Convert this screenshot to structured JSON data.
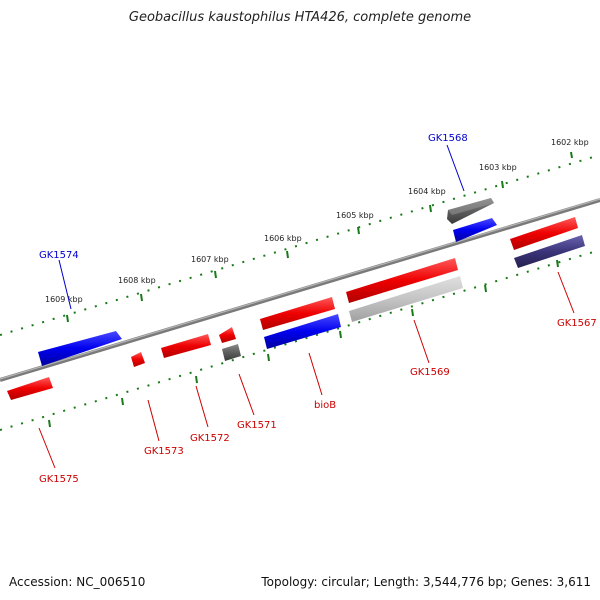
{
  "title": "Geobacillus kaustophilus HTA426, complete genome",
  "footer": {
    "accession": "Accession: NC_006510",
    "topology": "Topology: circular; Length: 3,544,776 bp; Genes: 3,611"
  },
  "ruler": {
    "outer_ticks": [
      "1602 kbp",
      "1603 kbp",
      "1604 kbp",
      "1605 kbp",
      "1606 kbp",
      "1607 kbp",
      "1608 kbp",
      "1609 kbp"
    ]
  },
  "gene_labels": {
    "GK1568": "GK1568",
    "GK1574": "GK1574",
    "GK1567": "GK1567",
    "GK1569": "GK1569",
    "bioB": "bioB",
    "GK1571": "GK1571",
    "GK1572": "GK1572",
    "GK1573": "GK1573",
    "GK1575": "GK1575"
  },
  "colors": {
    "forward_gene": "#e00000",
    "reverse_gene": "#0000dd",
    "other_gene": "#555555",
    "pale_gene": "#bbbbbb",
    "purple_gene": "#3b347a",
    "backbone": "#777777",
    "ruler": "#1a7a1a",
    "label_red": "#cc0000",
    "label_blue": "#0000cc"
  }
}
